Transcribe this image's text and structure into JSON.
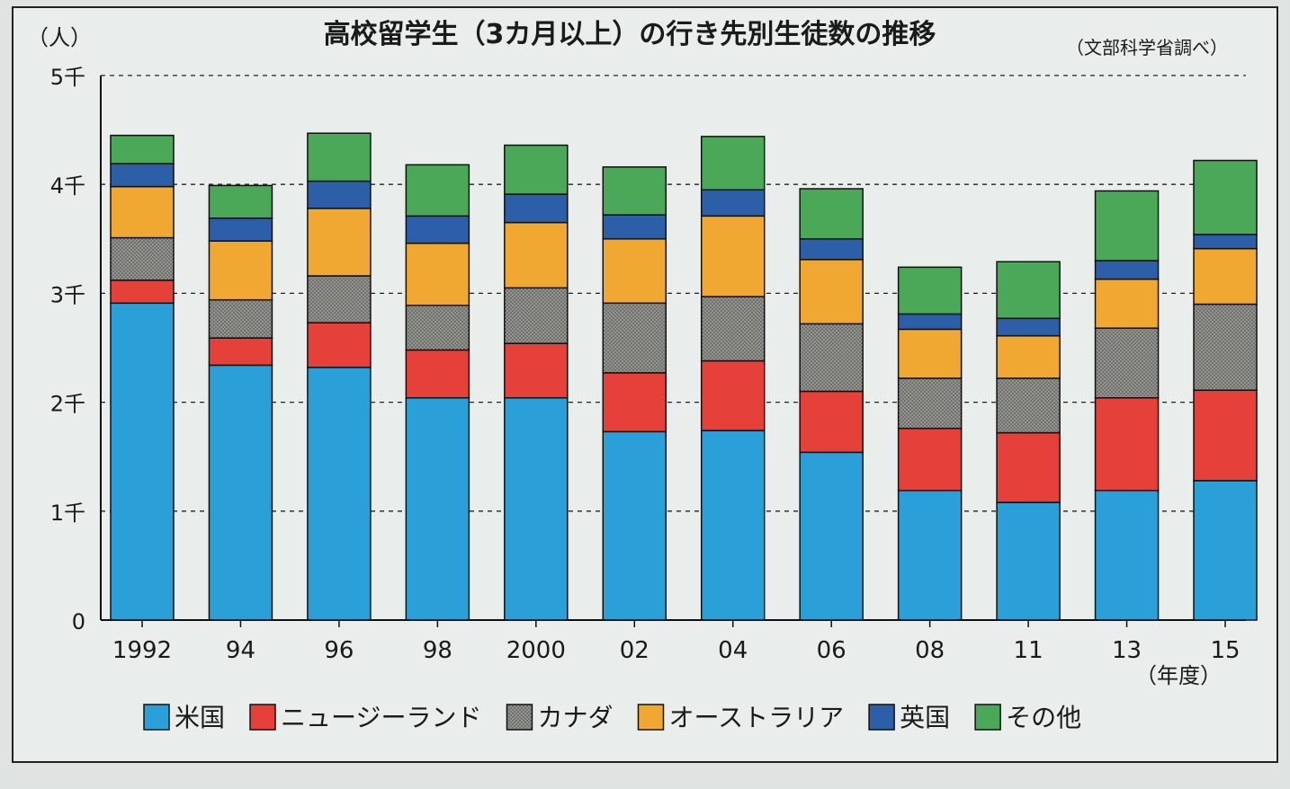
{
  "chart_data": {
    "type": "bar",
    "stacked": true,
    "title": "高校留学生（3カ月以上）の行き先別生徒数の推移",
    "source": "（文部科学省調べ）",
    "ylabel": "（人）",
    "xlabel": "（年度）",
    "ylim": [
      0,
      5000
    ],
    "yticks": [
      "0",
      "1千",
      "2千",
      "3千",
      "4千",
      "5千"
    ],
    "grid": "dashed horizontal",
    "legend_position": "bottom",
    "categories": [
      "1992",
      "94",
      "96",
      "98",
      "2000",
      "02",
      "04",
      "06",
      "08",
      "11",
      "13",
      "15"
    ],
    "series": [
      {
        "name": "米国",
        "color": "#2b9fd8",
        "values": [
          2910,
          2340,
          2320,
          2040,
          2040,
          1730,
          1740,
          1540,
          1190,
          1080,
          1190,
          1280
        ]
      },
      {
        "name": "ニュージーランド",
        "color": "#e5413a",
        "values": [
          210,
          250,
          410,
          440,
          500,
          540,
          640,
          560,
          570,
          640,
          850,
          830
        ]
      },
      {
        "name": "カナダ",
        "color": "#8c8c88",
        "values": [
          390,
          350,
          430,
          410,
          510,
          640,
          590,
          620,
          460,
          500,
          640,
          790
        ]
      },
      {
        "name": "オーストラリア",
        "color": "#f0a832",
        "values": [
          470,
          540,
          620,
          570,
          600,
          590,
          740,
          590,
          450,
          390,
          450,
          510
        ]
      },
      {
        "name": "英国",
        "color": "#2d5ea8",
        "values": [
          210,
          210,
          250,
          250,
          260,
          220,
          240,
          190,
          140,
          160,
          170,
          130
        ]
      },
      {
        "name": "その他",
        "color": "#4aa858",
        "values": [
          260,
          300,
          440,
          470,
          450,
          440,
          490,
          460,
          430,
          520,
          640,
          680
        ]
      }
    ]
  }
}
